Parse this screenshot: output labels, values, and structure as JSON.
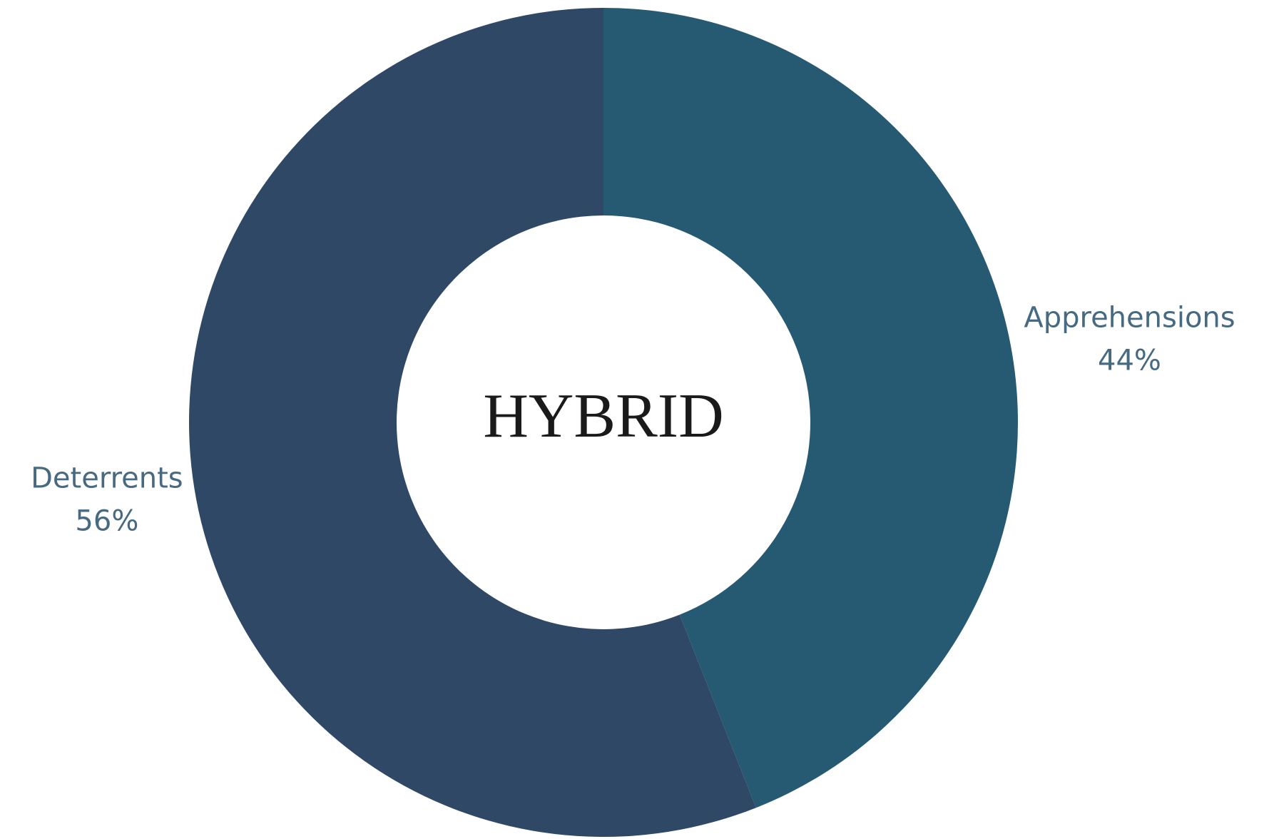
{
  "chart_data": {
    "type": "donut",
    "center_text": "HYBRID",
    "categories": [
      "Apprehensions",
      "Deterrents"
    ],
    "values": [
      44,
      56
    ],
    "value_labels": [
      "44%",
      "56%"
    ],
    "colors": [
      "#265a73",
      "#2e4866"
    ]
  }
}
